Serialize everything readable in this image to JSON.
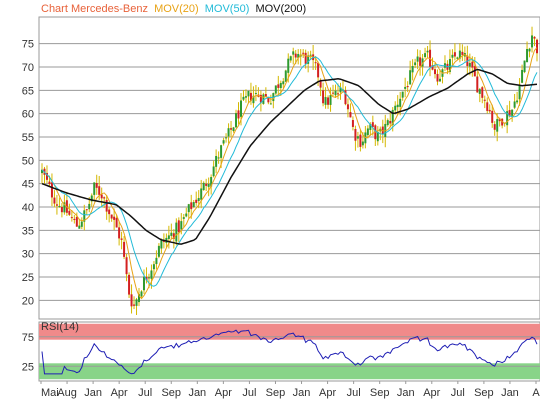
{
  "chart_data": {
    "type": "candlestick",
    "title_parts": [
      {
        "text": "Chart Mercedes-Benz",
        "color": "#e8623a"
      },
      {
        "text": "MOV(20)",
        "color": "#e8a317"
      },
      {
        "text": "MOV(50)",
        "color": "#22bbd8"
      },
      {
        "text": "MOV(200)",
        "color": "#111111"
      }
    ],
    "ylim": [
      16,
      79
    ],
    "y_ticks": [
      20,
      25,
      30,
      35,
      40,
      45,
      50,
      55,
      60,
      65,
      70,
      75
    ],
    "x_ticks": [
      "Mai",
      "Aug",
      "Jan",
      "Apr",
      "Jul",
      "Sep",
      "Jan",
      "Apr",
      "Jul",
      "Sep",
      "Jan",
      "Apr",
      "Jul",
      "Sep",
      "Jan",
      "Apr",
      "Jul",
      "Sep",
      "Jan",
      "A"
    ],
    "price_anchors": [
      {
        "t": 0.0,
        "y": 47.5
      },
      {
        "t": 0.015,
        "y": 44
      },
      {
        "t": 0.03,
        "y": 41
      },
      {
        "t": 0.05,
        "y": 39
      },
      {
        "t": 0.07,
        "y": 36
      },
      {
        "t": 0.09,
        "y": 39
      },
      {
        "t": 0.105,
        "y": 44
      },
      {
        "t": 0.12,
        "y": 43
      },
      {
        "t": 0.14,
        "y": 38
      },
      {
        "t": 0.16,
        "y": 33
      },
      {
        "t": 0.175,
        "y": 22
      },
      {
        "t": 0.185,
        "y": 18.5
      },
      {
        "t": 0.2,
        "y": 23
      },
      {
        "t": 0.22,
        "y": 27
      },
      {
        "t": 0.24,
        "y": 32
      },
      {
        "t": 0.26,
        "y": 34
      },
      {
        "t": 0.28,
        "y": 36
      },
      {
        "t": 0.3,
        "y": 40
      },
      {
        "t": 0.32,
        "y": 43
      },
      {
        "t": 0.34,
        "y": 47
      },
      {
        "t": 0.36,
        "y": 52
      },
      {
        "t": 0.38,
        "y": 56
      },
      {
        "t": 0.4,
        "y": 61
      },
      {
        "t": 0.42,
        "y": 64
      },
      {
        "t": 0.44,
        "y": 64
      },
      {
        "t": 0.46,
        "y": 63
      },
      {
        "t": 0.48,
        "y": 67
      },
      {
        "t": 0.5,
        "y": 71
      },
      {
        "t": 0.515,
        "y": 73
      },
      {
        "t": 0.53,
        "y": 72
      },
      {
        "t": 0.545,
        "y": 71
      },
      {
        "t": 0.56,
        "y": 68
      },
      {
        "t": 0.57,
        "y": 62
      },
      {
        "t": 0.59,
        "y": 64
      },
      {
        "t": 0.61,
        "y": 65
      },
      {
        "t": 0.63,
        "y": 56
      },
      {
        "t": 0.645,
        "y": 54
      },
      {
        "t": 0.66,
        "y": 57
      },
      {
        "t": 0.68,
        "y": 55
      },
      {
        "t": 0.7,
        "y": 58
      },
      {
        "t": 0.72,
        "y": 63
      },
      {
        "t": 0.74,
        "y": 67
      },
      {
        "t": 0.76,
        "y": 71
      },
      {
        "t": 0.78,
        "y": 72
      },
      {
        "t": 0.8,
        "y": 68
      },
      {
        "t": 0.82,
        "y": 70
      },
      {
        "t": 0.84,
        "y": 73
      },
      {
        "t": 0.86,
        "y": 71
      },
      {
        "t": 0.88,
        "y": 66
      },
      {
        "t": 0.9,
        "y": 62
      },
      {
        "t": 0.915,
        "y": 57
      },
      {
        "t": 0.93,
        "y": 59
      },
      {
        "t": 0.95,
        "y": 61
      },
      {
        "t": 0.965,
        "y": 66
      },
      {
        "t": 0.98,
        "y": 74
      },
      {
        "t": 0.99,
        "y": 77
      },
      {
        "t": 1.0,
        "y": 74
      }
    ],
    "ma200_anchors": [
      {
        "t": 0.0,
        "y": 45
      },
      {
        "t": 0.05,
        "y": 43
      },
      {
        "t": 0.1,
        "y": 41.5
      },
      {
        "t": 0.15,
        "y": 40.5
      },
      {
        "t": 0.18,
        "y": 38
      },
      {
        "t": 0.21,
        "y": 35
      },
      {
        "t": 0.24,
        "y": 33
      },
      {
        "t": 0.28,
        "y": 32
      },
      {
        "t": 0.31,
        "y": 33
      },
      {
        "t": 0.34,
        "y": 38
      },
      {
        "t": 0.38,
        "y": 46
      },
      {
        "t": 0.42,
        "y": 53
      },
      {
        "t": 0.46,
        "y": 58
      },
      {
        "t": 0.5,
        "y": 62
      },
      {
        "t": 0.53,
        "y": 65
      },
      {
        "t": 0.56,
        "y": 67
      },
      {
        "t": 0.6,
        "y": 67.5
      },
      {
        "t": 0.64,
        "y": 66
      },
      {
        "t": 0.68,
        "y": 62
      },
      {
        "t": 0.71,
        "y": 60
      },
      {
        "t": 0.74,
        "y": 61
      },
      {
        "t": 0.78,
        "y": 63.5
      },
      {
        "t": 0.82,
        "y": 65.5
      },
      {
        "t": 0.86,
        "y": 68.5
      },
      {
        "t": 0.88,
        "y": 69.5
      },
      {
        "t": 0.91,
        "y": 68.5
      },
      {
        "t": 0.94,
        "y": 66.5
      },
      {
        "t": 0.97,
        "y": 66
      },
      {
        "t": 1.0,
        "y": 66.3
      }
    ],
    "candle_count": 200,
    "indicator": {
      "label": "RSI(14)",
      "ylim": [
        0,
        100
      ],
      "y_ticks": [
        25,
        75
      ],
      "overbought": 70,
      "oversold": 30,
      "band_top_color": "#f08a8a",
      "band_bottom_color": "#88d488",
      "line_color": "#1e1eb4"
    },
    "colors": {
      "up": "#2e9a2e",
      "down": "#d32020",
      "wick": "#d4b800",
      "ma20": "#e8a317",
      "ma50": "#22bbd8",
      "ma200": "#111111",
      "grid": "#9a9a9a",
      "plot_bg": "#ffffff",
      "frame": "#9a9a9a"
    }
  }
}
